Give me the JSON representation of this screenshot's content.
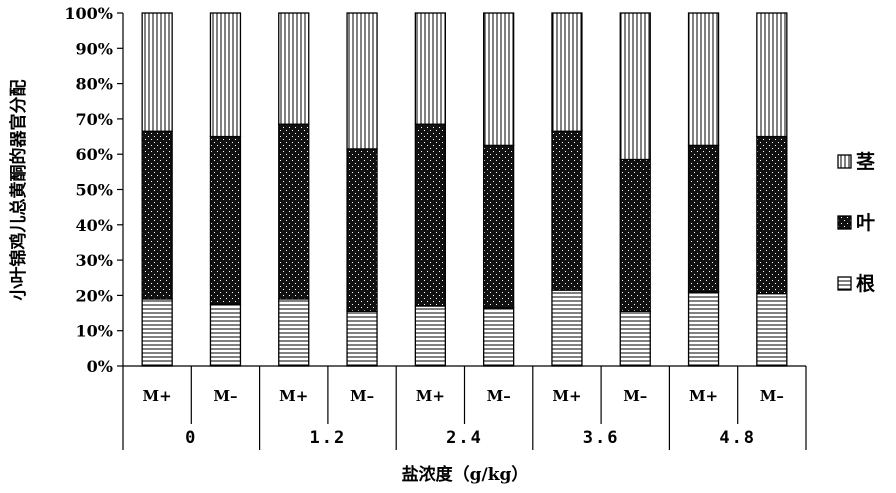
{
  "chart_data": {
    "type": "bar",
    "stacked": "percent",
    "title": "",
    "ylabel": "小叶锦鸡儿总黄酮的器官分配",
    "xlabel": "盐浓度（g/kg）",
    "ylim": [
      0,
      100
    ],
    "yticks": [
      "0%",
      "10%",
      "20%",
      "30%",
      "40%",
      "50%",
      "60%",
      "70%",
      "80%",
      "90%",
      "100%"
    ],
    "groups": [
      "0",
      "1.2",
      "2.4",
      "3.6",
      "4.8"
    ],
    "categories": [
      "M+",
      "M–",
      "M+",
      "M–",
      "M+",
      "M–",
      "M+",
      "M–",
      "M+",
      "M–"
    ],
    "series": [
      {
        "name": "根",
        "pattern": "horizontal-lines",
        "values": [
          19,
          17.5,
          19,
          15.5,
          17,
          16.5,
          21.5,
          15.5,
          21,
          20.5
        ]
      },
      {
        "name": "叶",
        "pattern": "dots-on-black",
        "values": [
          47.5,
          47.5,
          49.5,
          46,
          51.5,
          46,
          45,
          43,
          41.5,
          44.5
        ]
      },
      {
        "name": "茎",
        "pattern": "vertical-lines",
        "values": [
          33.5,
          35,
          31.5,
          38.5,
          31.5,
          37.5,
          33.5,
          41.5,
          37.5,
          35
        ]
      }
    ],
    "legend_position": "right",
    "legend_order": [
      "茎",
      "叶",
      "根"
    ],
    "grid": false
  }
}
